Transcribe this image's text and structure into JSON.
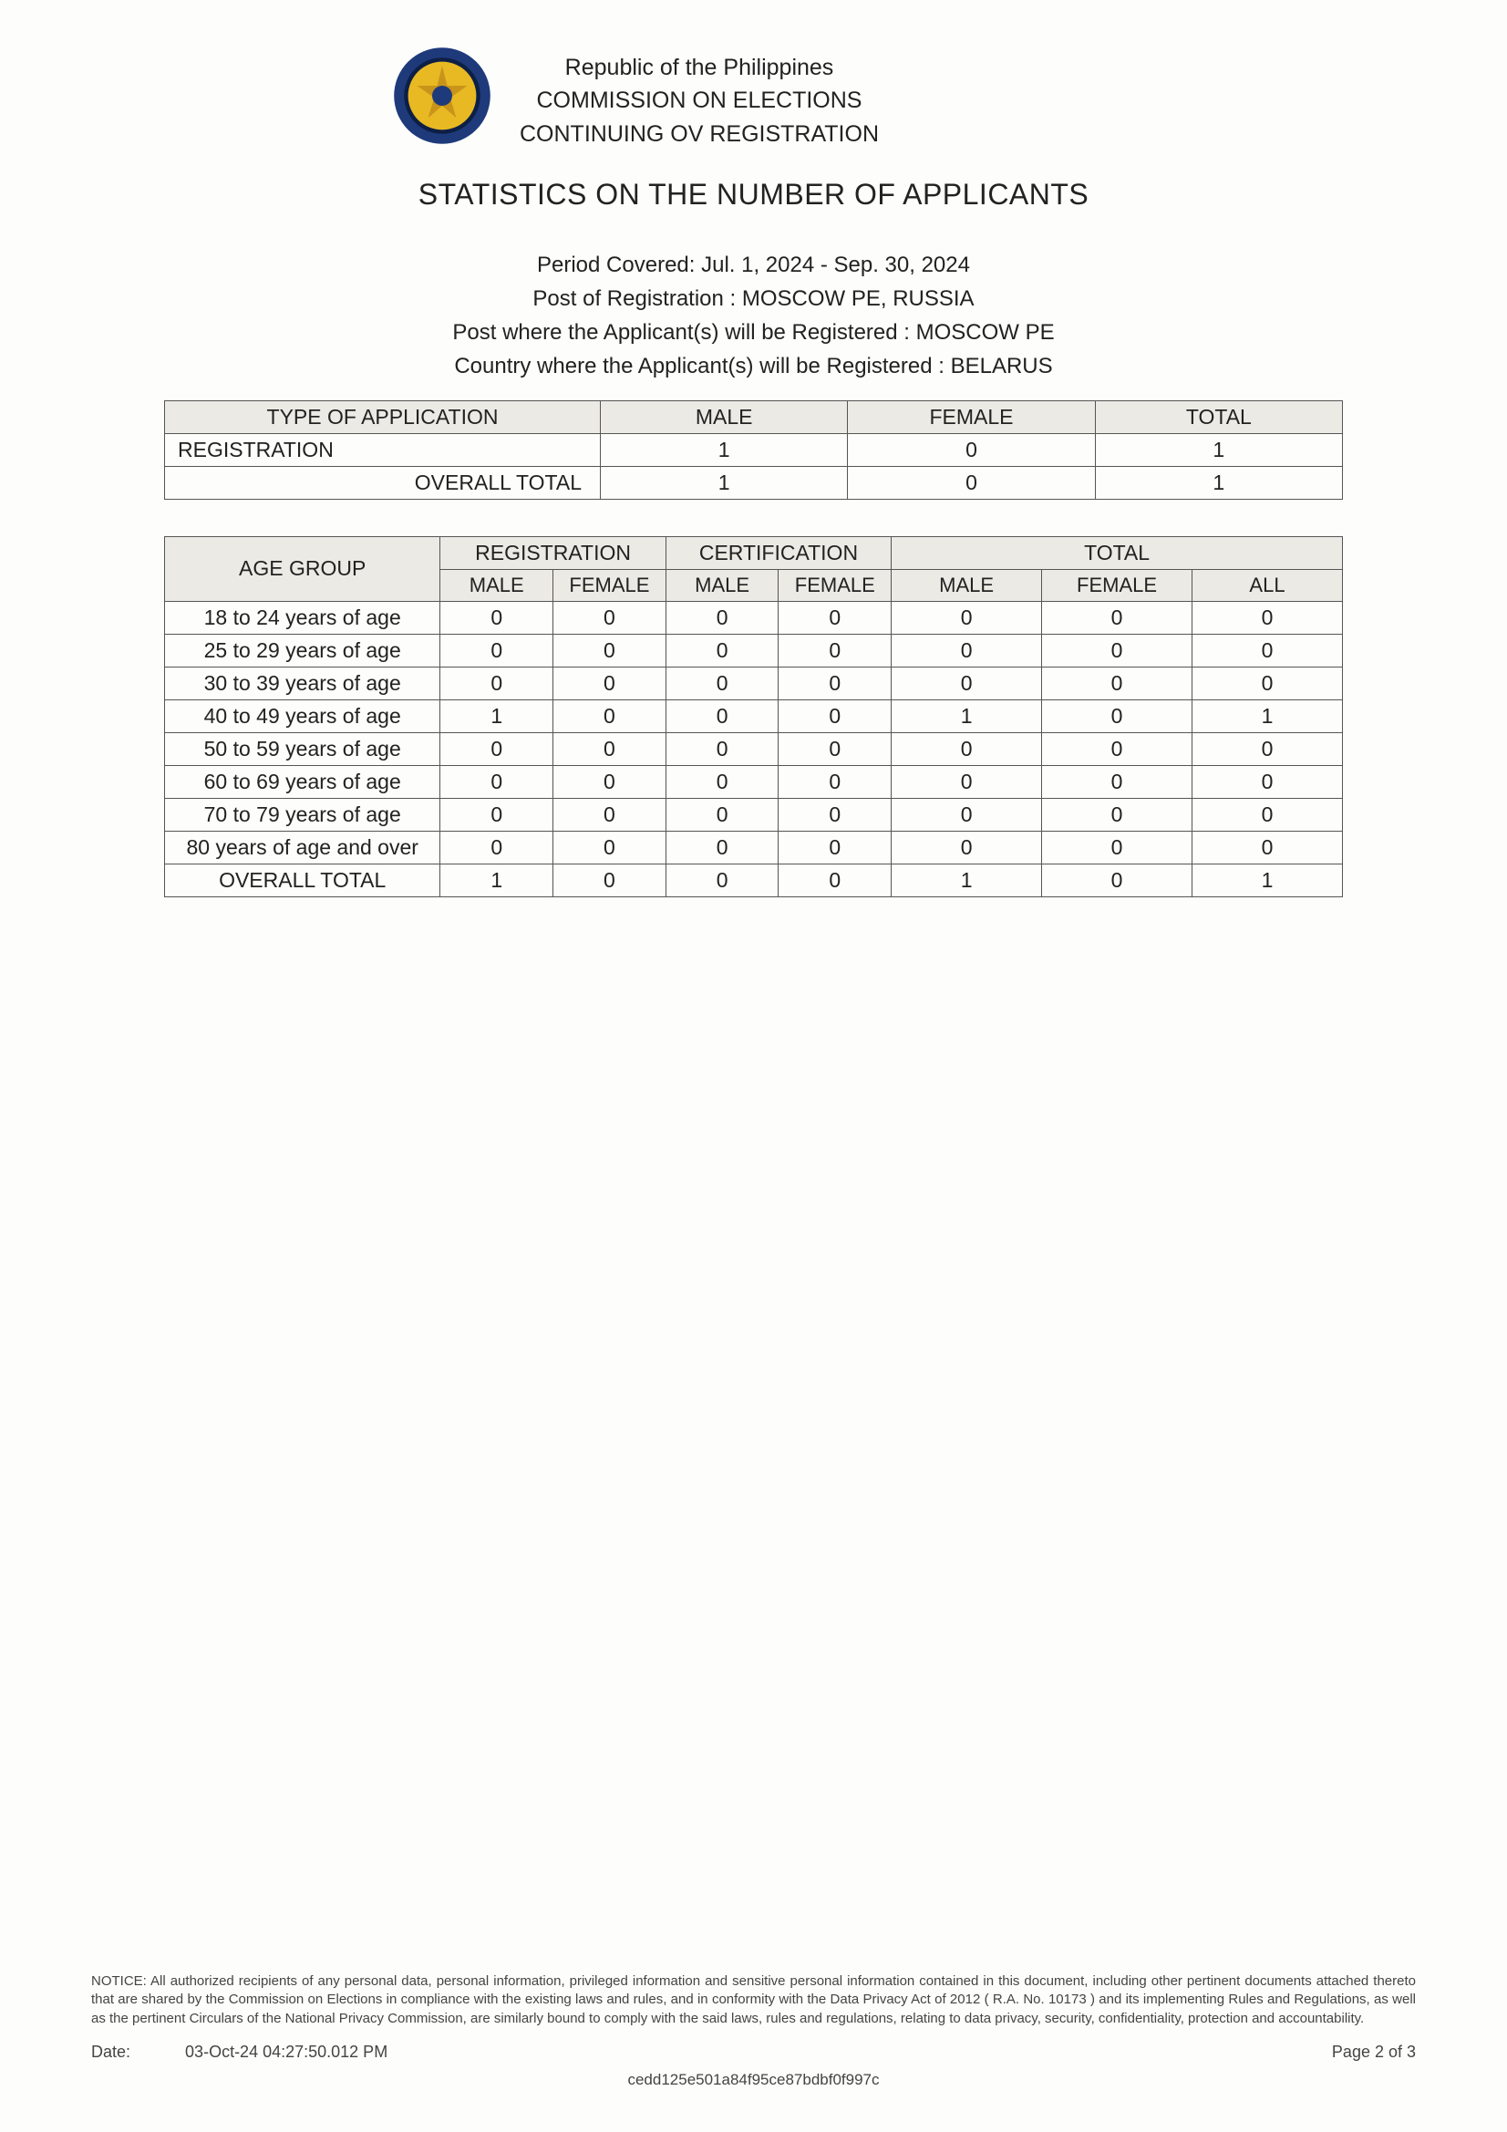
{
  "header": {
    "line1": "Republic of the Philippines",
    "line2": "COMMISSION ON ELECTIONS",
    "line3": "CONTINUING OV REGISTRATION",
    "seal_colors": {
      "outer_ring": "#1e3a7b",
      "inner": "#e8b923",
      "shadow": "#0d1f45"
    }
  },
  "title": "STATISTICS ON THE NUMBER OF APPLICANTS",
  "meta": {
    "period": "Period Covered: Jul. 1, 2024 - Sep. 30, 2024",
    "post_reg": "Post of Registration : MOSCOW PE, RUSSIA",
    "post_where": "Post where the Applicant(s) will be Registered : MOSCOW PE",
    "country_where": "Country where the Applicant(s) will be Registered :   BELARUS"
  },
  "table1": {
    "headers": [
      "TYPE OF APPLICATION",
      "MALE",
      "FEMALE",
      "TOTAL"
    ],
    "rows": [
      {
        "label": "REGISTRATION",
        "male": "1",
        "female": "0",
        "total": "1"
      }
    ],
    "overall": {
      "label": "OVERALL TOTAL",
      "male": "1",
      "female": "0",
      "total": "1"
    },
    "col_widths_pct": [
      37,
      21,
      21,
      21
    ],
    "header_bg": "#eceae4",
    "border_color": "#555555"
  },
  "table2": {
    "group_headers": [
      "AGE GROUP",
      "REGISTRATION",
      "CERTIFICATION",
      "TOTAL"
    ],
    "sub_headers": [
      "MALE",
      "FEMALE",
      "MALE",
      "FEMALE",
      "MALE",
      "FEMALE",
      "ALL"
    ],
    "rows": [
      {
        "age": "18 to 24 years of age",
        "v": [
          "0",
          "0",
          "0",
          "0",
          "0",
          "0",
          "0"
        ]
      },
      {
        "age": "25 to 29 years of age",
        "v": [
          "0",
          "0",
          "0",
          "0",
          "0",
          "0",
          "0"
        ]
      },
      {
        "age": "30 to 39 years of age",
        "v": [
          "0",
          "0",
          "0",
          "0",
          "0",
          "0",
          "0"
        ]
      },
      {
        "age": "40 to 49 years of age",
        "v": [
          "1",
          "0",
          "0",
          "0",
          "1",
          "0",
          "1"
        ]
      },
      {
        "age": "50 to 59 years of age",
        "v": [
          "0",
          "0",
          "0",
          "0",
          "0",
          "0",
          "0"
        ]
      },
      {
        "age": "60 to 69 years of age",
        "v": [
          "0",
          "0",
          "0",
          "0",
          "0",
          "0",
          "0"
        ]
      },
      {
        "age": "70 to 79 years of age",
        "v": [
          "0",
          "0",
          "0",
          "0",
          "0",
          "0",
          "0"
        ]
      },
      {
        "age": "80 years of age and over",
        "v": [
          "0",
          "0",
          "0",
          "0",
          "0",
          "0",
          "0"
        ]
      }
    ],
    "overall": {
      "age": "OVERALL TOTAL",
      "v": [
        "1",
        "0",
        "0",
        "0",
        "1",
        "0",
        "1"
      ]
    },
    "col_widths_pct": [
      22,
      9,
      9,
      9,
      9,
      12,
      12,
      12
    ],
    "header_bg": "#eceae4",
    "border_color": "#555555"
  },
  "footer": {
    "notice": "NOTICE: All authorized recipients of any personal data, personal information, privileged information and sensitive personal information contained in this document, including other pertinent documents attached thereto that are shared by the Commission on Elections in compliance with the existing laws and rules, and in conformity with the Data Privacy Act of 2012 ( R.A. No. 10173 ) and its implementing Rules and Regulations, as well as the pertinent Circulars of the National Privacy Commission, are similarly bound to comply with the said laws, rules and regulations, relating to data privacy, security, confidentiality, protection and accountability.",
    "date_label": "Date:",
    "date_value": "03-Oct-24 04:27:50.012 PM",
    "page_label": "Page 2 of 3",
    "hash": "cedd125e501a84f95ce87bdbf0f997c"
  },
  "style": {
    "page_bg": "#fdfdfb",
    "text_color": "#222222",
    "font_family": "Arial"
  }
}
